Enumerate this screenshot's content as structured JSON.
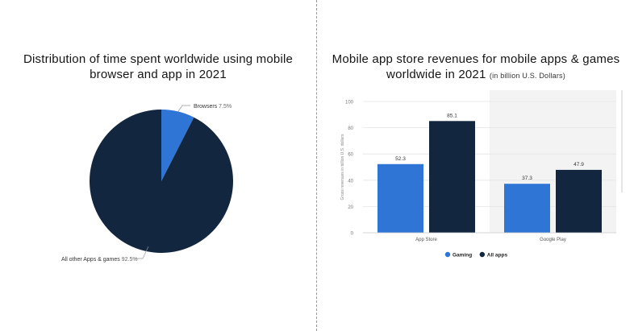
{
  "left": {
    "title_line1": "Distribution of time spent worldwide using mobile",
    "title_line2": "browser and app in 2021"
  },
  "right": {
    "title_line1": "Mobile app store revenues for mobile apps & games",
    "title_line2": "worldwide in 2021",
    "title_note": "(in billion U.S. Dollars)"
  },
  "colors": {
    "gaming": "#2f75d6",
    "all_apps": "#13263f",
    "grid": "#e5e5e5",
    "shaded_bg": "#f3f3f3"
  },
  "chart_data": [
    {
      "type": "pie",
      "title": "Distribution of time spent worldwide using mobile browser and app in 2021",
      "slices": [
        {
          "label": "Browsers",
          "value": 7.5,
          "value_label": "7.5%",
          "color": "#2f75d6"
        },
        {
          "label": "All other Apps & games",
          "value": 92.5,
          "value_label": "92.5%",
          "color": "#13263f"
        }
      ]
    },
    {
      "type": "bar",
      "title": "Mobile app store revenues for mobile apps & games worldwide in 2021",
      "ylabel": "Gross revenues in billion U.S. dollars",
      "ylim": [
        0,
        100
      ],
      "yticks": [
        0,
        20,
        40,
        60,
        80,
        100
      ],
      "categories": [
        "App Store",
        "Google Play"
      ],
      "series": [
        {
          "name": "Gaming",
          "values": [
            52.3,
            37.3
          ],
          "color": "#2f75d6"
        },
        {
          "name": "All apps",
          "values": [
            85.1,
            47.9
          ],
          "color": "#13263f"
        }
      ],
      "legend_position": "bottom"
    }
  ]
}
